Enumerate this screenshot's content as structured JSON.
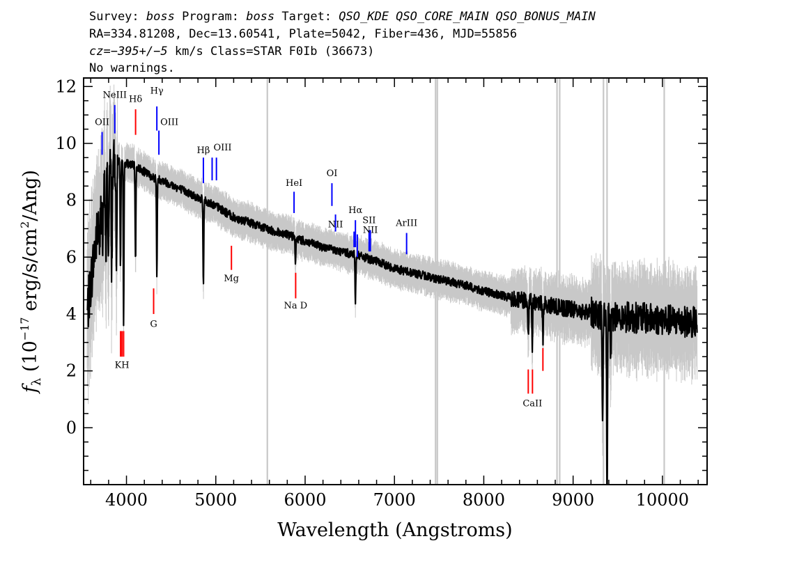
{
  "header": {
    "line1_a": "Survey: ",
    "line1_survey": "boss",
    "line1_b": " Program: ",
    "line1_program": "boss",
    "line1_c": " Target: ",
    "line1_target": "QSO_KDE QSO_CORE_MAIN QSO_BONUS_MAIN",
    "line2": "RA=334.81208, Dec=13.60541, Plate=5042, Fiber=436, MJD=55856",
    "line3_a": "cz=",
    "line3_value": "−395+/−5",
    "line3_b": " km/s Class=STAR F0Ib (36673)",
    "line4": "No warnings."
  },
  "colors": {
    "flux": "#000000",
    "error": "#c8c8c8",
    "emission": "#0000ff",
    "absorption": "#ff0000",
    "sky": "#c8c8c8"
  },
  "chart_data": {
    "type": "line",
    "title": "",
    "xlabel": "Wavelength (Angstroms)",
    "ylabel_prefix": "f",
    "ylabel_sub": "λ",
    "ylabel_mid": " (10",
    "ylabel_exp1": "−17",
    "ylabel_mid2": " erg/s/cm",
    "ylabel_exp2": "2",
    "ylabel_end": "/Ang)",
    "xlim": [
      3520,
      10500
    ],
    "ylim": [
      -2.0,
      12.3
    ],
    "x_ticks": [
      4000,
      5000,
      6000,
      7000,
      8000,
      9000,
      10000
    ],
    "x_tick_labels": [
      "4000",
      "5000",
      "6000",
      "7000",
      "8000",
      "9000",
      "10000"
    ],
    "y_ticks": [
      0,
      2,
      4,
      6,
      8,
      10,
      12
    ],
    "y_tick_labels": [
      "0",
      "2",
      "4",
      "6",
      "8",
      "10",
      "12"
    ],
    "continuum_anchors": [
      [
        3560,
        4.0
      ],
      [
        3650,
        6.4
      ],
      [
        3720,
        7.8
      ],
      [
        3800,
        9.0
      ],
      [
        3900,
        9.4
      ],
      [
        4000,
        9.3
      ],
      [
        4100,
        9.2
      ],
      [
        4200,
        9.0
      ],
      [
        4300,
        8.8
      ],
      [
        4400,
        8.7
      ],
      [
        4600,
        8.4
      ],
      [
        4800,
        8.1
      ],
      [
        5000,
        7.8
      ],
      [
        5200,
        7.4
      ],
      [
        5400,
        7.2
      ],
      [
        5600,
        6.95
      ],
      [
        5800,
        6.8
      ],
      [
        6000,
        6.55
      ],
      [
        6200,
        6.35
      ],
      [
        6400,
        6.2
      ],
      [
        6600,
        6.05
      ],
      [
        6800,
        5.85
      ],
      [
        7000,
        5.6
      ],
      [
        7200,
        5.45
      ],
      [
        7400,
        5.3
      ],
      [
        7600,
        5.15
      ],
      [
        7800,
        5.0
      ],
      [
        8000,
        4.8
      ],
      [
        8200,
        4.65
      ],
      [
        8400,
        4.5
      ],
      [
        8600,
        4.4
      ],
      [
        8800,
        4.25
      ],
      [
        9000,
        4.15
      ],
      [
        9200,
        4.05
      ],
      [
        9400,
        3.95
      ],
      [
        9600,
        3.9
      ],
      [
        9800,
        3.85
      ],
      [
        10000,
        3.8
      ],
      [
        10200,
        3.75
      ],
      [
        10380,
        3.7
      ]
    ],
    "absorption_features": [
      [
        3700,
        1.6
      ],
      [
        3735,
        2.0
      ],
      [
        3770,
        2.8
      ],
      [
        3798,
        3.2
      ],
      [
        3835,
        3.6
      ],
      [
        3889,
        4.2
      ],
      [
        3933,
        3.8
      ],
      [
        3968,
        5.6
      ],
      [
        4101,
        3.4
      ],
      [
        4340,
        3.4
      ],
      [
        4861,
        3.0
      ],
      [
        5892,
        1.0
      ],
      [
        6563,
        1.6
      ],
      [
        8498,
        1.4
      ],
      [
        8542,
        1.6
      ],
      [
        8662,
        1.2
      ],
      [
        9330,
        4.2
      ],
      [
        9380,
        6.8
      ],
      [
        9420,
        2.0
      ]
    ],
    "sky_lines": [
      5577,
      7460,
      7480,
      8820,
      8850,
      9340,
      9380,
      10020
    ],
    "lines": [
      {
        "label": "OII",
        "wl": 3727,
        "y0": 9.6,
        "y1": 10.4,
        "type": "emission",
        "ly": 10.65,
        "anchor": "middle"
      },
      {
        "label": "NeIII",
        "wl": 3869,
        "y0": 10.35,
        "y1": 11.35,
        "type": "emission",
        "ly": 11.6,
        "anchor": "middle"
      },
      {
        "label": "Hδ",
        "wl": 4102,
        "y0": 10.3,
        "y1": 11.2,
        "type": "absorption",
        "ly": 11.45,
        "anchor": "middle"
      },
      {
        "label": "Hγ",
        "wl": 4340,
        "y0": 10.45,
        "y1": 11.3,
        "type": "emission",
        "ly": 11.75,
        "anchor": "middle"
      },
      {
        "label": "OIII",
        "wl": 4363,
        "y0": 9.6,
        "y1": 10.45,
        "type": "emission",
        "ly": 10.65,
        "anchor": "start"
      },
      {
        "label": "Hβ",
        "wl": 4861,
        "y0": 8.6,
        "y1": 9.5,
        "type": "emission",
        "ly": 9.65,
        "anchor": "middle"
      },
      {
        "label": "OIII",
        "wl": 4959,
        "y0": 8.7,
        "y1": 9.5,
        "type": "emission",
        "ly": 9.75,
        "anchor": "start"
      },
      {
        "label": "",
        "wl": 5007,
        "y0": 8.7,
        "y1": 9.5,
        "type": "emission",
        "ly": 0,
        "anchor": "middle"
      },
      {
        "label": "Mg",
        "wl": 5175,
        "y0": 5.55,
        "y1": 6.4,
        "type": "absorption",
        "ly": 5.15,
        "anchor": "middle"
      },
      {
        "label": "HeI",
        "wl": 5876,
        "y0": 7.55,
        "y1": 8.3,
        "type": "emission",
        "ly": 8.5,
        "anchor": "middle"
      },
      {
        "label": "Na D",
        "wl": 5894,
        "y0": 4.55,
        "y1": 5.45,
        "type": "absorption",
        "ly": 4.2,
        "anchor": "middle"
      },
      {
        "label": "OI",
        "wl": 6300,
        "y0": 7.8,
        "y1": 8.6,
        "type": "emission",
        "ly": 8.85,
        "anchor": "middle"
      },
      {
        "label": "NII",
        "wl": 6340,
        "y0": 6.9,
        "y1": 7.5,
        "type": "emission",
        "ly": 7.05,
        "anchor": "middle"
      },
      {
        "label": "Hα",
        "wl": 6563,
        "y0": 6.35,
        "y1": 7.3,
        "type": "emission",
        "ly": 7.55,
        "anchor": "middle"
      },
      {
        "label": "",
        "wl": 6548,
        "y0": 6.35,
        "y1": 6.9,
        "type": "emission",
        "ly": 0,
        "anchor": "middle"
      },
      {
        "label": "",
        "wl": 6584,
        "y0": 6.0,
        "y1": 6.8,
        "type": "emission",
        "ly": 0,
        "anchor": "middle"
      },
      {
        "label": "SII",
        "wl": 6716,
        "y0": 6.2,
        "y1": 6.95,
        "type": "emission",
        "ly": 7.2,
        "anchor": "middle"
      },
      {
        "label": "NII",
        "wl": 6730,
        "y0": 6.2,
        "y1": 6.95,
        "type": "emission",
        "ly": 6.85,
        "anchor": "middle"
      },
      {
        "label": "ArIII",
        "wl": 7136,
        "y0": 6.1,
        "y1": 6.85,
        "type": "emission",
        "ly": 7.1,
        "anchor": "middle"
      },
      {
        "label": "KH",
        "wl": 3950,
        "y0": 2.5,
        "y1": 3.4,
        "type": "absorption",
        "ly": 2.1,
        "anchor": "middle"
      },
      {
        "label": "",
        "wl": 3934,
        "y0": 2.5,
        "y1": 3.4,
        "type": "absorption",
        "ly": 0,
        "anchor": "middle"
      },
      {
        "label": "",
        "wl": 3968,
        "y0": 2.5,
        "y1": 3.4,
        "type": "absorption",
        "ly": 0,
        "anchor": "middle"
      },
      {
        "label": "G",
        "wl": 4304,
        "y0": 4.0,
        "y1": 4.9,
        "type": "absorption",
        "ly": 3.55,
        "anchor": "middle"
      },
      {
        "label": "CaII",
        "wl": 8545,
        "y0": 1.2,
        "y1": 2.05,
        "type": "absorption",
        "ly": 0.75,
        "anchor": "middle"
      },
      {
        "label": "",
        "wl": 8498,
        "y0": 1.2,
        "y1": 2.05,
        "type": "absorption",
        "ly": 0,
        "anchor": "middle"
      },
      {
        "label": "",
        "wl": 8662,
        "y0": 2.0,
        "y1": 2.8,
        "type": "absorption",
        "ly": 0,
        "anchor": "middle"
      }
    ]
  }
}
